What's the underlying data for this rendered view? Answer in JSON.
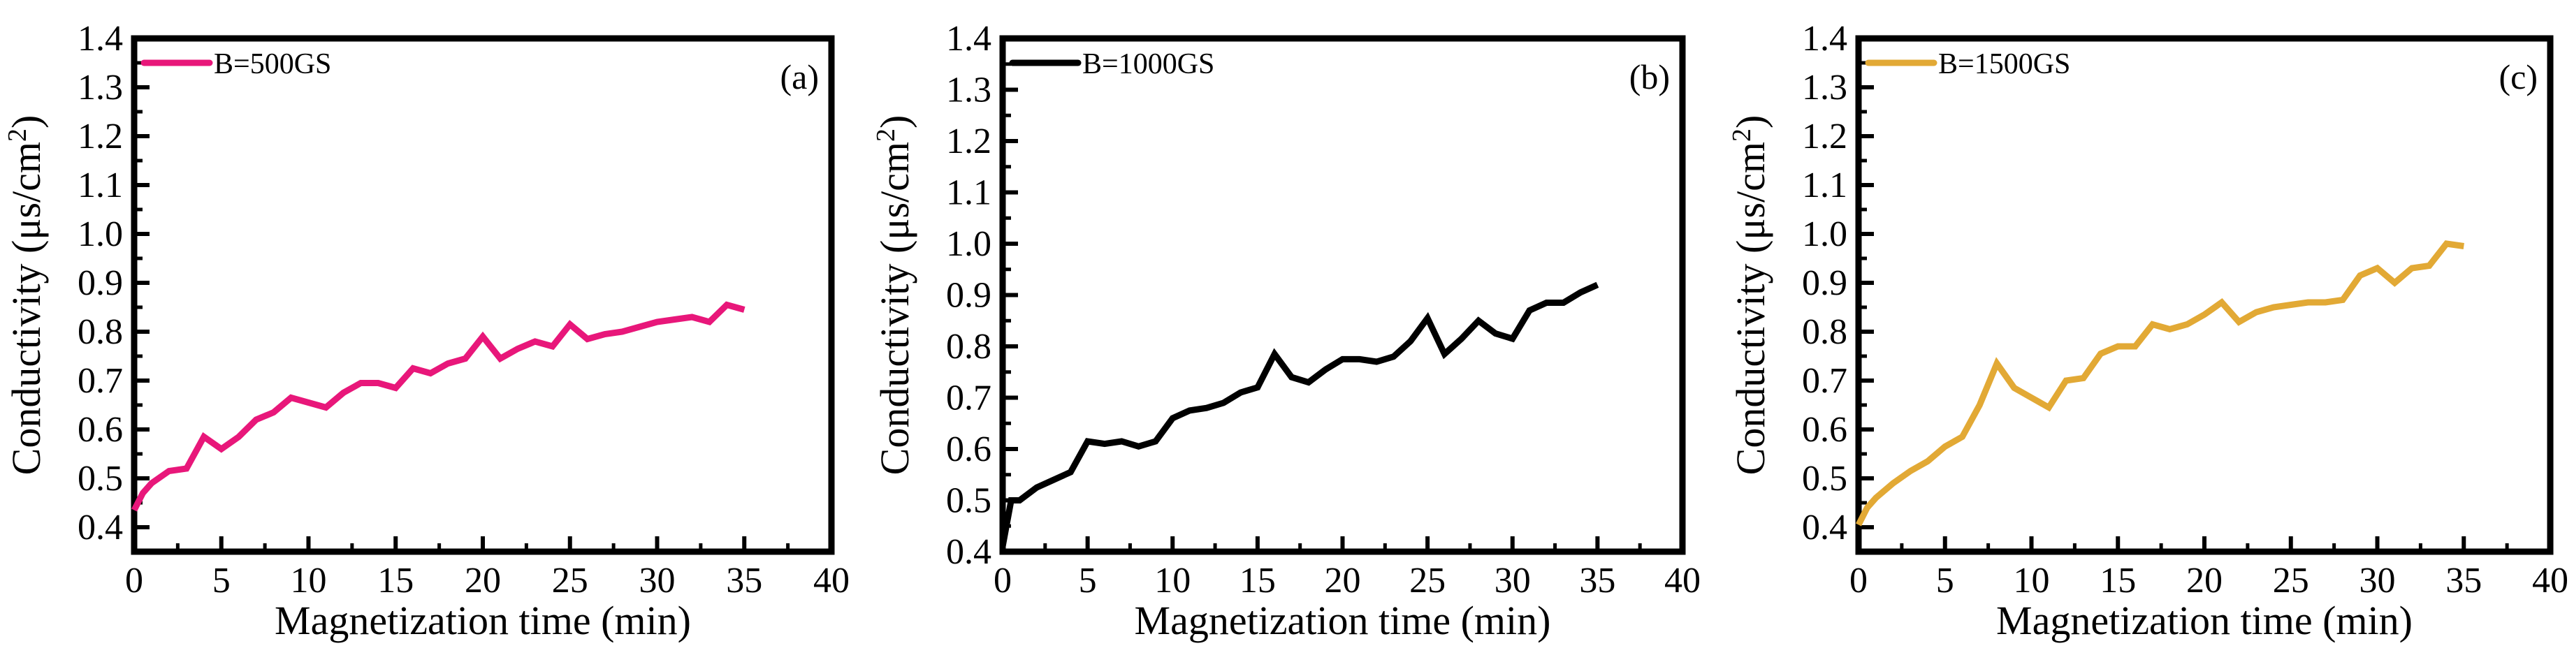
{
  "chart_data": [
    {
      "type": "line",
      "panel_label": "(a)",
      "title": "",
      "xlabel": "Magnetization time (min)",
      "ylabel": "Conductivity (μs/cm²)",
      "ylabel_base": "Conductivity (μs/cm",
      "ylabel_sup": "2",
      "ylabel_end": ")",
      "xlim": [
        0,
        40
      ],
      "ylim": [
        0.35,
        1.4
      ],
      "xticks": [
        "0",
        "5",
        "10",
        "15",
        "20",
        "25",
        "30",
        "35",
        "40"
      ],
      "yticks": [
        "0.4",
        "0.5",
        "0.6",
        "0.7",
        "0.8",
        "0.9",
        "1.0",
        "1.1",
        "1.2",
        "1.3",
        "1.4"
      ],
      "legend_position": "top-left",
      "grid": false,
      "series": [
        {
          "name": "B=500GS",
          "color": "#e8177a",
          "x": [
            0,
            0.5,
            1,
            2,
            3,
            4,
            5,
            6,
            7,
            8,
            9,
            10,
            11,
            12,
            13,
            14,
            15,
            16,
            17,
            18,
            19,
            20,
            21,
            22,
            23,
            24,
            25,
            26,
            27,
            28,
            29,
            30,
            31,
            32,
            33,
            34,
            35
          ],
          "values": [
            0.435,
            0.47,
            0.49,
            0.515,
            0.52,
            0.585,
            0.56,
            0.585,
            0.62,
            0.635,
            0.665,
            0.655,
            0.645,
            0.675,
            0.695,
            0.695,
            0.685,
            0.725,
            0.715,
            0.735,
            0.745,
            0.79,
            0.745,
            0.765,
            0.78,
            0.77,
            0.815,
            0.785,
            0.795,
            0.8,
            0.81,
            0.82,
            0.825,
            0.83,
            0.82,
            0.855,
            0.845
          ]
        }
      ]
    },
    {
      "type": "line",
      "panel_label": "(b)",
      "title": "",
      "xlabel": "Magnetization time (min)",
      "ylabel": "Conductivity (μs/cm²)",
      "ylabel_base": "Conductivity (μs/cm",
      "ylabel_sup": "2",
      "ylabel_end": ")",
      "xlim": [
        0,
        40
      ],
      "ylim": [
        0.4,
        1.4
      ],
      "xticks": [
        "0",
        "5",
        "10",
        "15",
        "20",
        "25",
        "30",
        "35",
        "40"
      ],
      "yticks": [
        "0.4",
        "0.5",
        "0.6",
        "0.7",
        "0.8",
        "0.9",
        "1.0",
        "1.1",
        "1.2",
        "1.3",
        "1.4"
      ],
      "legend_position": "top-left",
      "grid": false,
      "series": [
        {
          "name": "B=1000GS",
          "color": "#000000",
          "x": [
            0,
            0.5,
            1,
            2,
            3,
            4,
            5,
            6,
            7,
            8,
            9,
            10,
            11,
            12,
            13,
            14,
            15,
            16,
            17,
            18,
            19,
            20,
            21,
            22,
            23,
            24,
            25,
            26,
            27,
            28,
            29,
            30,
            31,
            32,
            33,
            34,
            35
          ],
          "values": [
            0.41,
            0.5,
            0.5,
            0.525,
            0.54,
            0.555,
            0.615,
            0.61,
            0.615,
            0.605,
            0.615,
            0.66,
            0.675,
            0.68,
            0.69,
            0.71,
            0.72,
            0.785,
            0.74,
            0.73,
            0.755,
            0.775,
            0.775,
            0.77,
            0.78,
            0.81,
            0.855,
            0.785,
            0.815,
            0.85,
            0.825,
            0.815,
            0.87,
            0.885,
            0.885,
            0.905,
            0.92
          ]
        }
      ]
    },
    {
      "type": "line",
      "panel_label": "(c)",
      "title": "",
      "xlabel": "Magnetization time (min)",
      "ylabel": "Conductivity (μs/cm²)",
      "ylabel_base": "Conductivity (μs/cm",
      "ylabel_sup": "2",
      "ylabel_end": ")",
      "xlim": [
        0,
        40
      ],
      "ylim": [
        0.35,
        1.4
      ],
      "xticks": [
        "0",
        "5",
        "10",
        "15",
        "20",
        "25",
        "30",
        "35",
        "40"
      ],
      "yticks": [
        "0.4",
        "0.5",
        "0.6",
        "0.7",
        "0.8",
        "0.9",
        "1.0",
        "1.1",
        "1.2",
        "1.3",
        "1.4"
      ],
      "legend_position": "top-left",
      "grid": false,
      "series": [
        {
          "name": "B=1500GS",
          "color": "#e2a935",
          "x": [
            0,
            0.5,
            1,
            2,
            3,
            4,
            5,
            6,
            7,
            8,
            9,
            10,
            11,
            12,
            13,
            14,
            15,
            16,
            17,
            18,
            19,
            20,
            21,
            22,
            23,
            24,
            25,
            26,
            27,
            28,
            29,
            30,
            31,
            32,
            33,
            34,
            35
          ],
          "values": [
            0.405,
            0.44,
            0.46,
            0.49,
            0.515,
            0.535,
            0.565,
            0.585,
            0.65,
            0.735,
            0.685,
            0.665,
            0.645,
            0.7,
            0.705,
            0.755,
            0.77,
            0.77,
            0.815,
            0.805,
            0.815,
            0.835,
            0.86,
            0.82,
            0.84,
            0.85,
            0.855,
            0.86,
            0.86,
            0.865,
            0.915,
            0.93,
            0.9,
            0.93,
            0.935,
            0.98,
            0.975
          ]
        }
      ]
    }
  ]
}
